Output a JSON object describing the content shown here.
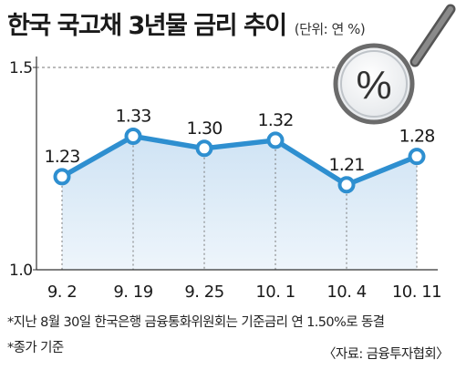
{
  "title": "한국 국고채 3년물 금리 추이",
  "unit": "(단위: 연 %)",
  "magnifier_symbol": "%",
  "footnotes": [
    "*지난 8월 30일 한국은행 금융통화위원회는 기준금리 연 1.50%로 동결",
    "*종가 기준"
  ],
  "source": "〈자료: 금융투자협회〉",
  "colors": {
    "line": "#2e8fd0",
    "area": "#dcebf7",
    "marker_fill": "#ffffff",
    "text": "#1a1a1a",
    "grid": "#777777"
  },
  "chart_data": {
    "type": "line",
    "categories": [
      "9. 2",
      "9. 19",
      "9. 25",
      "10. 1",
      "10. 4",
      "10. 11"
    ],
    "series": [
      {
        "values": [
          1.23,
          1.33,
          1.3,
          1.32,
          1.21,
          1.28
        ]
      }
    ],
    "value_labels": [
      "1.23",
      "1.33",
      "1.30",
      "1.32",
      "1.21",
      "1.28"
    ],
    "y_ticks": [
      "1.0",
      "1.5"
    ],
    "ylim": [
      1.0,
      1.5
    ],
    "reference_line": 1.5,
    "grid": false
  }
}
